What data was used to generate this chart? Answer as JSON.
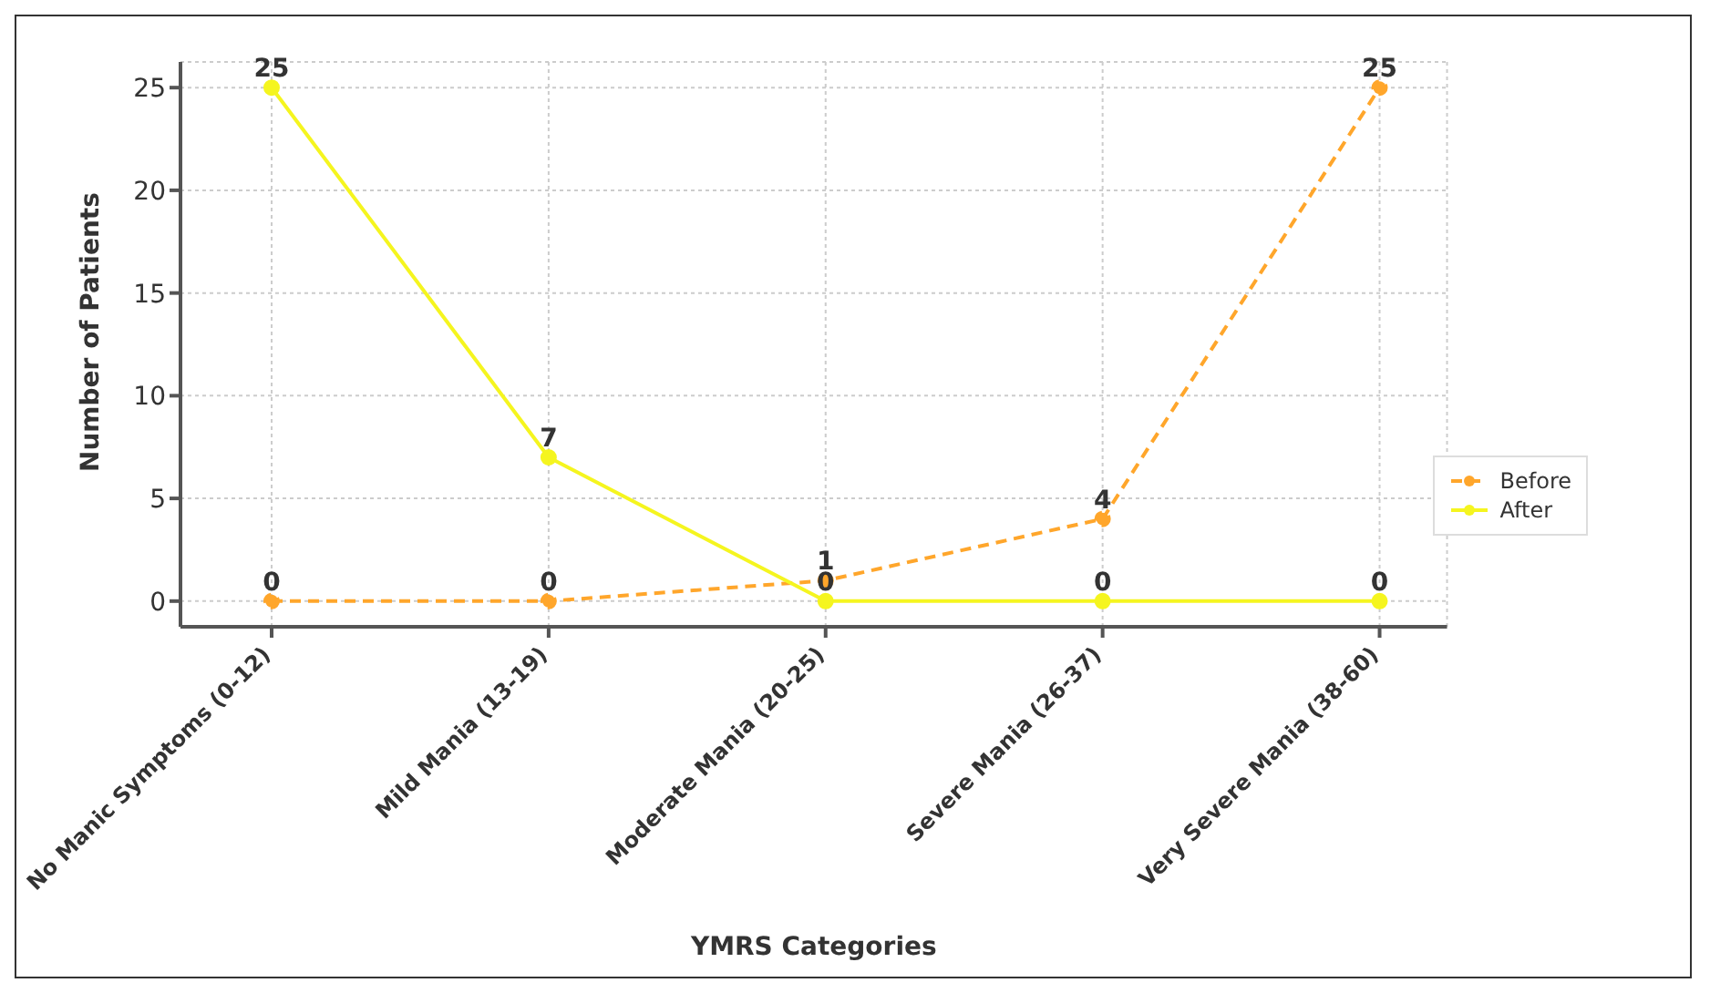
{
  "chart_data": {
    "type": "line",
    "xlabel": "YMRS Categories",
    "ylabel": "Number of Patients",
    "categories": [
      "No Manic Symptoms (0-12)",
      "Mild Mania (13-19)",
      "Moderate Mania (20-25)",
      "Severe Mania (26-37)",
      "Very Severe Mania (38-60)"
    ],
    "series": [
      {
        "name": "Before",
        "color": "#ffa62b",
        "values": [
          0,
          0,
          1,
          4,
          25
        ],
        "line_style": "dashed"
      },
      {
        "name": "After",
        "color": "#f5f51f",
        "values": [
          25,
          7,
          0,
          0,
          0
        ],
        "line_style": "solid"
      }
    ],
    "ylim": [
      -1.25,
      26.25
    ],
    "yticks": [
      0,
      5,
      10,
      15,
      20,
      25
    ],
    "grid": true,
    "legend": "right",
    "marker": "circle",
    "data_labels": true
  }
}
